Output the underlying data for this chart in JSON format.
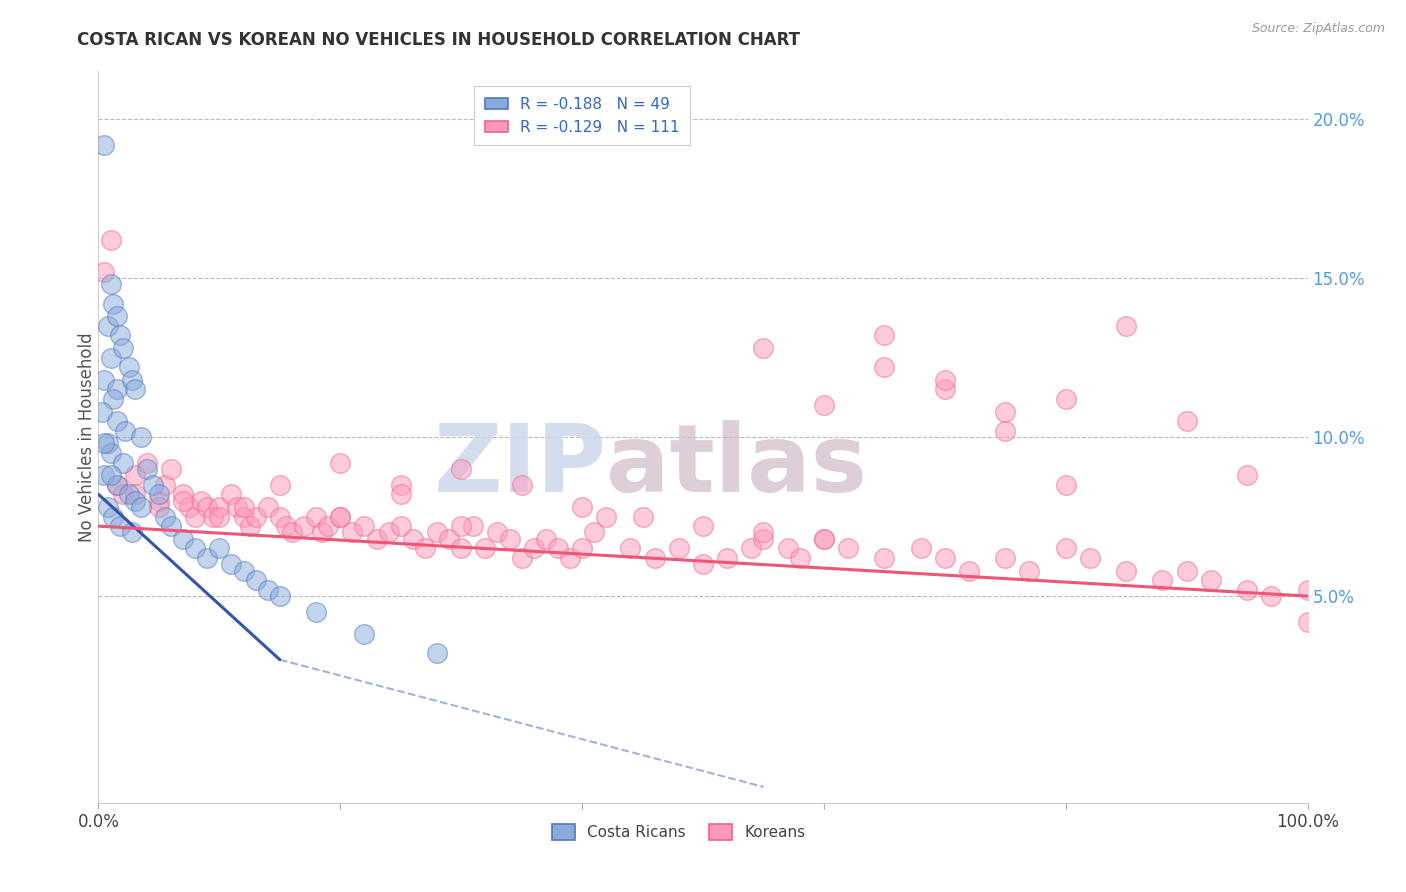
{
  "title": "COSTA RICAN VS KOREAN NO VEHICLES IN HOUSEHOLD CORRELATION CHART",
  "source": "Source: ZipAtlas.com",
  "ylabel": "No Vehicles in Household",
  "xmin": 0.0,
  "xmax": 100.0,
  "ymin": -1.5,
  "ymax": 21.5,
  "ytick_vals": [
    5.0,
    10.0,
    15.0,
    20.0
  ],
  "xtick_vals": [
    0.0,
    20.0,
    40.0,
    60.0,
    80.0,
    100.0
  ],
  "blue_label": "Costa Ricans",
  "pink_label": "Koreans",
  "blue_R": "-0.188",
  "blue_N": "49",
  "pink_R": "-0.129",
  "pink_N": "111",
  "blue_color": "#88AADD",
  "pink_color": "#FF99BB",
  "blue_edge_color": "#5577BB",
  "pink_edge_color": "#EE6688",
  "blue_line_color": "#3355AA",
  "pink_line_color": "#EE5577",
  "right_axis_color": "#5599EE",
  "background": "#FFFFFF",
  "watermark_zip": "ZIP",
  "watermark_atlas": "atlas",
  "blue_scatter_x": [
    0.5,
    1.0,
    0.8,
    1.2,
    1.5,
    1.0,
    1.8,
    0.5,
    2.0,
    1.5,
    2.5,
    1.2,
    0.3,
    2.8,
    3.0,
    1.5,
    2.2,
    0.8,
    1.0,
    3.5,
    2.0,
    0.5,
    1.5,
    2.5,
    4.0,
    3.0,
    0.8,
    1.2,
    4.5,
    5.0,
    1.8,
    2.8,
    5.5,
    0.5,
    1.0,
    3.5,
    6.0,
    7.0,
    8.0,
    9.0,
    10.0,
    11.0,
    12.0,
    13.0,
    14.0,
    15.0,
    18.0,
    22.0,
    28.0
  ],
  "blue_scatter_y": [
    19.2,
    14.8,
    13.5,
    14.2,
    13.8,
    12.5,
    13.2,
    11.8,
    12.8,
    11.5,
    12.2,
    11.2,
    10.8,
    11.8,
    11.5,
    10.5,
    10.2,
    9.8,
    9.5,
    10.0,
    9.2,
    8.8,
    8.5,
    8.2,
    9.0,
    8.0,
    7.8,
    7.5,
    8.5,
    8.2,
    7.2,
    7.0,
    7.5,
    9.8,
    8.8,
    7.8,
    7.2,
    6.8,
    6.5,
    6.2,
    6.5,
    6.0,
    5.8,
    5.5,
    5.2,
    5.0,
    4.5,
    3.8,
    3.2
  ],
  "pink_scatter_x": [
    0.5,
    1.5,
    2.0,
    3.0,
    4.0,
    5.0,
    5.5,
    6.0,
    7.0,
    7.5,
    8.0,
    8.5,
    9.0,
    9.5,
    10.0,
    11.0,
    11.5,
    12.0,
    12.5,
    13.0,
    14.0,
    15.0,
    15.5,
    16.0,
    17.0,
    18.0,
    18.5,
    19.0,
    20.0,
    21.0,
    22.0,
    23.0,
    24.0,
    25.0,
    26.0,
    27.0,
    28.0,
    29.0,
    30.0,
    31.0,
    32.0,
    33.0,
    34.0,
    35.0,
    36.0,
    37.0,
    38.0,
    39.0,
    40.0,
    41.0,
    42.0,
    44.0,
    46.0,
    48.0,
    50.0,
    52.0,
    54.0,
    55.0,
    57.0,
    58.0,
    60.0,
    62.0,
    65.0,
    68.0,
    70.0,
    72.0,
    75.0,
    77.0,
    80.0,
    82.0,
    85.0,
    88.0,
    90.0,
    92.0,
    95.0,
    97.0,
    100.0,
    55.0,
    60.0,
    65.0,
    70.0,
    75.0,
    80.0,
    85.0,
    90.0,
    95.0,
    100.0,
    20.0,
    25.0,
    30.0,
    35.0,
    40.0,
    45.0,
    50.0,
    55.0,
    60.0,
    65.0,
    70.0,
    75.0,
    80.0,
    1.0,
    3.0,
    5.0,
    7.0,
    10.0,
    12.0,
    15.0,
    20.0,
    25.0,
    30.0
  ],
  "pink_scatter_y": [
    15.2,
    8.5,
    8.2,
    8.8,
    9.2,
    8.0,
    8.5,
    9.0,
    8.2,
    7.8,
    7.5,
    8.0,
    7.8,
    7.5,
    7.8,
    8.2,
    7.8,
    7.5,
    7.2,
    7.5,
    7.8,
    7.5,
    7.2,
    7.0,
    7.2,
    7.5,
    7.0,
    7.2,
    7.5,
    7.0,
    7.2,
    6.8,
    7.0,
    7.2,
    6.8,
    6.5,
    7.0,
    6.8,
    6.5,
    7.2,
    6.5,
    7.0,
    6.8,
    6.2,
    6.5,
    6.8,
    6.5,
    6.2,
    6.5,
    7.0,
    7.5,
    6.5,
    6.2,
    6.5,
    6.0,
    6.2,
    6.5,
    6.8,
    6.5,
    6.2,
    6.8,
    6.5,
    6.2,
    6.5,
    6.2,
    5.8,
    6.2,
    5.8,
    6.5,
    6.2,
    5.8,
    5.5,
    5.8,
    5.5,
    5.2,
    5.0,
    5.2,
    12.8,
    11.0,
    13.2,
    11.5,
    10.8,
    11.2,
    13.5,
    10.5,
    8.8,
    4.2,
    9.2,
    8.5,
    9.0,
    8.5,
    7.8,
    7.5,
    7.2,
    7.0,
    6.8,
    12.2,
    11.8,
    10.2,
    8.5,
    16.2,
    8.2,
    7.8,
    8.0,
    7.5,
    7.8,
    8.5,
    7.5,
    8.2,
    7.2
  ],
  "blue_line_x0": 0.0,
  "blue_line_x1": 15.0,
  "blue_line_y0": 8.2,
  "blue_line_y1": 3.0,
  "blue_dash_x0": 15.0,
  "blue_dash_x1": 55.0,
  "blue_dash_y0": 3.0,
  "blue_dash_y1": -1.0,
  "pink_line_x0": 0.0,
  "pink_line_x1": 100.0,
  "pink_line_y0": 7.2,
  "pink_line_y1": 5.0
}
